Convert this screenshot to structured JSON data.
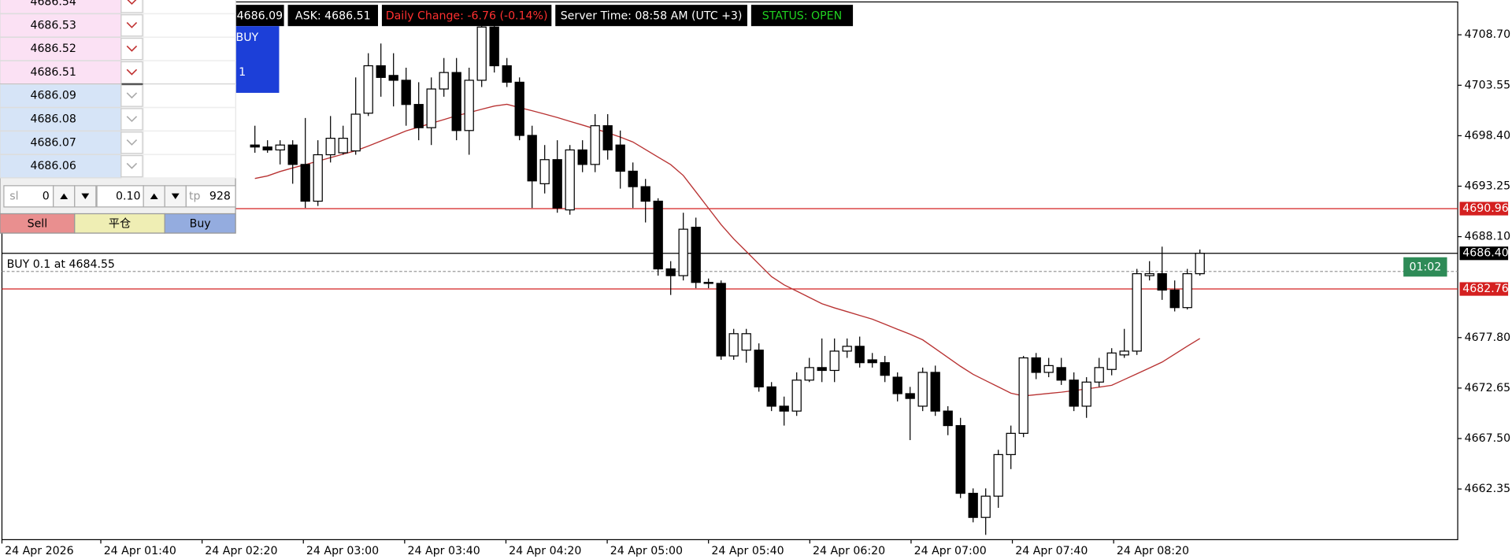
{
  "header": {
    "bid": "4686.09",
    "ask": "ASK: 4686.51",
    "daily_change": "Daily Change: -6.76 (-0.14%)",
    "server_time": "Server Time: 08:58 AM (UTC +3)",
    "status": "STATUS: OPEN"
  },
  "order_panel": {
    "sell_prices": [
      "4686.54",
      "4686.53",
      "4686.52",
      "4686.51"
    ],
    "buy_prices": [
      "4686.09",
      "4686.08",
      "4686.07",
      "4686.06"
    ],
    "sl_label": "sl",
    "sl": "0",
    "lots": "0.10",
    "tp_label": "tp",
    "tp": "928",
    "buttons": [
      "Sell",
      "平仓",
      "Buy"
    ]
  },
  "buy_box": {
    "label": "BUY",
    "lots": "1"
  },
  "timer": "01:02",
  "chart_data": {
    "type": "candlestick",
    "ylim": [
      4657.18,
      4712.25
    ],
    "yticks": [
      {
        "value": 4708.7,
        "label": "4708.70"
      },
      4703.55,
      {
        "value": 4698.4,
        "label": "4698.40"
      },
      4693.25,
      {
        "value": 4688.1,
        "label": "4688.10"
      },
      {
        "value": 4677.8,
        "label": "4677.80"
      },
      4672.65,
      {
        "value": 4667.5,
        "label": "4667.50"
      },
      4662.35
    ],
    "xticks": [
      "24 Apr 2026",
      "24 Apr 01:40",
      "24 Apr 02:20",
      "24 Apr 03:00",
      "24 Apr 03:40",
      "24 Apr 04:20",
      "24 Apr 05:00",
      "24 Apr 05:40",
      "24 Apr 06:20",
      "24 Apr 07:00",
      "24 Apr 07:40",
      "24 Apr 08:20"
    ],
    "colors": {
      "up": "#ffffff",
      "down": "#000000",
      "outline": "#000000",
      "ma": "#b83232"
    },
    "levels": [
      {
        "price": 4690.96,
        "color": "#d42020"
      },
      {
        "price": 4686.4,
        "label": "4686.40",
        "color": "#000000"
      },
      {
        "price": 4682.76,
        "color": "#d42020"
      }
    ],
    "order": {
      "label": "BUY 0.1 at 4684.55",
      "price": 4684.55
    },
    "open": [
      4697.45,
      4697.25,
      4696.95,
      4697.45,
      4695.47,
      4691.72,
      4696.46,
      4696.66,
      4696.85,
      4700.7,
      4705.54,
      4704.55,
      4704.06,
      4701.59,
      4699.22,
      4703.17,
      4704.85,
      4698.93,
      4704.06,
      4709.49,
      4705.54,
      4703.86,
      4698.43,
      4693.5,
      4695.96,
      4690.83,
      4696.95,
      4695.47,
      4699.42,
      4697.45,
      4694.78,
      4693.2,
      4691.72,
      4684.81,
      4684.12,
      4689.06,
      4683.43,
      4683.33,
      4675.93,
      4676.52,
      4676.52,
      4672.77,
      4670.8,
      4670.3,
      4673.46,
      4674.74,
      4674.45,
      4676.42,
      4676.91,
      4675.53,
      4675.24,
      4673.76,
      4672.08,
      4670.8,
      4674.25,
      4670.3,
      4668.82,
      4661.91,
      4659.45,
      4661.62,
      4665.86,
      4668.03,
      4675.73,
      4674.25,
      4674.74,
      4673.46,
      4670.8,
      4673.26,
      4674.55,
      4676.03,
      4676.42,
      4684.12,
      4684.32,
      4682.65,
      4680.86,
      4684.32
    ],
    "high": [
      4699.42,
      4697.94,
      4697.94,
      4697.94,
      4700.21,
      4697.94,
      4700.41,
      4699.42,
      4704.35,
      4706.82,
      4707.81,
      4706.82,
      4705.34,
      4703.86,
      4704.35,
      4706.33,
      4706.33,
      4705.34,
      4710.28,
      4710.28,
      4706.33,
      4704.35,
      4699.42,
      4697.45,
      4697.94,
      4697.45,
      4697.94,
      4700.6,
      4700.6,
      4698.93,
      4695.67,
      4693.99,
      4692.02,
      4685.6,
      4690.54,
      4690.04,
      4683.83,
      4683.63,
      4678.69,
      4678.69,
      4677.21,
      4673.26,
      4671.78,
      4674.25,
      4675.73,
      4677.71,
      4677.71,
      4677.71,
      4677.9,
      4676.23,
      4675.93,
      4674.25,
      4672.77,
      4674.74,
      4674.94,
      4670.8,
      4669.61,
      4662.41,
      4662.41,
      4666.35,
      4668.82,
      4675.93,
      4676.23,
      4675.73,
      4675.73,
      4674.25,
      4673.76,
      4675.73,
      4676.72,
      4678.69,
      4684.81,
      4685.6,
      4687.08,
      4683.63,
      4684.81,
      4686.79
    ],
    "low": [
      4696.66,
      4696.66,
      4695.47,
      4693.5,
      4691.03,
      4691.23,
      4695.67,
      4696.46,
      4696.46,
      4700.41,
      4702.38,
      4701.39,
      4699.42,
      4697.94,
      4697.45,
      4702.38,
      4697.94,
      4696.46,
      4703.37,
      4704.85,
      4703.37,
      4697.94,
      4691.03,
      4692.51,
      4690.54,
      4690.34,
      4694.68,
      4694.68,
      4695.96,
      4693.0,
      4691.03,
      4689.55,
      4684.12,
      4682.15,
      4683.63,
      4682.84,
      4682.84,
      4675.53,
      4675.53,
      4675.24,
      4672.28,
      4670.3,
      4668.82,
      4669.81,
      4673.26,
      4673.26,
      4673.26,
      4675.73,
      4674.74,
      4674.74,
      4673.26,
      4671.29,
      4667.34,
      4670.3,
      4669.81,
      4667.84,
      4661.42,
      4658.95,
      4657.67,
      4660.43,
      4664.38,
      4667.64,
      4673.56,
      4673.76,
      4672.97,
      4670.3,
      4669.61,
      4672.77,
      4673.95,
      4675.73,
      4676.03,
      4683.63,
      4681.65,
      4680.47,
      4680.67,
      4684.12
    ],
    "close": [
      4697.25,
      4696.95,
      4697.45,
      4695.47,
      4691.72,
      4696.46,
      4698.14,
      4698.14,
      4700.6,
      4705.54,
      4704.35,
      4704.06,
      4701.59,
      4699.22,
      4703.17,
      4704.85,
      4698.93,
      4704.06,
      4709.49,
      4705.54,
      4703.86,
      4698.43,
      4693.79,
      4695.96,
      4691.03,
      4696.95,
      4695.47,
      4699.42,
      4696.95,
      4694.78,
      4693.2,
      4691.72,
      4684.81,
      4684.12,
      4688.86,
      4683.43,
      4683.33,
      4675.93,
      4678.2,
      4678.2,
      4672.77,
      4670.8,
      4670.3,
      4673.46,
      4674.74,
      4674.45,
      4676.42,
      4676.91,
      4675.24,
      4675.24,
      4673.95,
      4672.08,
      4671.59,
      4674.25,
      4670.3,
      4668.82,
      4661.91,
      4659.45,
      4661.62,
      4665.86,
      4668.03,
      4675.73,
      4674.25,
      4674.94,
      4673.46,
      4670.8,
      4673.26,
      4674.74,
      4676.23,
      4676.42,
      4684.32,
      4684.32,
      4682.65,
      4680.86,
      4684.32,
      4686.4
    ],
    "ma": [
      4694.04,
      4694.3,
      4694.75,
      4695.11,
      4695.45,
      4695.81,
      4696.16,
      4696.52,
      4696.87,
      4697.35,
      4697.86,
      4698.37,
      4698.89,
      4699.28,
      4699.67,
      4700.05,
      4700.44,
      4700.76,
      4701.1,
      4701.43,
      4701.61,
      4701.27,
      4700.95,
      4700.61,
      4700.26,
      4699.87,
      4699.49,
      4699.1,
      4698.7,
      4698.26,
      4697.76,
      4696.99,
      4696.22,
      4695.45,
      4694.34,
      4692.67,
      4691.0,
      4689.33,
      4687.87,
      4686.59,
      4685.3,
      4684.02,
      4683.18,
      4682.54,
      4681.9,
      4681.26,
      4680.83,
      4680.45,
      4680.06,
      4679.68,
      4679.17,
      4678.65,
      4678.14,
      4677.57,
      4676.67,
      4675.77,
      4674.87,
      4674.05,
      4673.41,
      4672.77,
      4672.13,
      4671.84,
      4671.97,
      4672.1,
      4672.23,
      4672.39,
      4672.56,
      4672.74,
      4672.93,
      4673.52,
      4674.11,
      4674.7,
      4675.3,
      4676.11,
      4676.92,
      4677.71
    ]
  }
}
